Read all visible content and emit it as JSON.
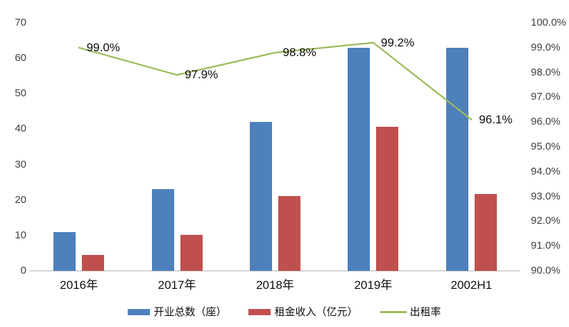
{
  "chart_data": {
    "type": "bar",
    "subtype": "combo-bar-line-dual-axis",
    "categories": [
      "2016年",
      "2017年",
      "2018年",
      "2019年",
      "2002H1"
    ],
    "series": [
      {
        "name": "开业总数（座）",
        "type": "bar",
        "axis": "left",
        "color": "#4e80bc",
        "values": [
          11,
          23,
          42,
          63,
          63
        ]
      },
      {
        "name": "租金收入（亿元）",
        "type": "bar",
        "axis": "left",
        "color": "#c0504d",
        "values": [
          4.4,
          10.2,
          21.2,
          40.7,
          21.7
        ]
      },
      {
        "name": "出租率",
        "type": "line",
        "axis": "right",
        "color": "#9bbb59",
        "values": [
          99.0,
          97.9,
          98.8,
          99.2,
          96.1
        ],
        "labels": [
          "99.0%",
          "97.9%",
          "98.8%",
          "99.2%",
          "96.1%"
        ]
      }
    ],
    "title": "",
    "xlabel": "",
    "ylabel": "",
    "left_axis": {
      "min": 0,
      "max": 70,
      "step": 10,
      "ticks": [
        "70",
        "60",
        "50",
        "40",
        "30",
        "20",
        "10",
        "0"
      ]
    },
    "right_axis": {
      "min": 90,
      "max": 100,
      "step": 1,
      "ticks": [
        "100.0%",
        "99.0%",
        "98.0%",
        "97.0%",
        "96.0%",
        "95.0%",
        "94.0%",
        "93.0%",
        "92.0%",
        "91.0%",
        "90.0%"
      ]
    },
    "grid": false,
    "legend_position": "bottom"
  },
  "colors": {
    "bar_blue": "#4e80bc",
    "bar_red": "#c0504d",
    "line_green": "#9bbb59",
    "axis_text": "#3f3f3f",
    "label_text": "#0d0d0d",
    "baseline": "#d6d6d6",
    "background": "#ffffff"
  }
}
